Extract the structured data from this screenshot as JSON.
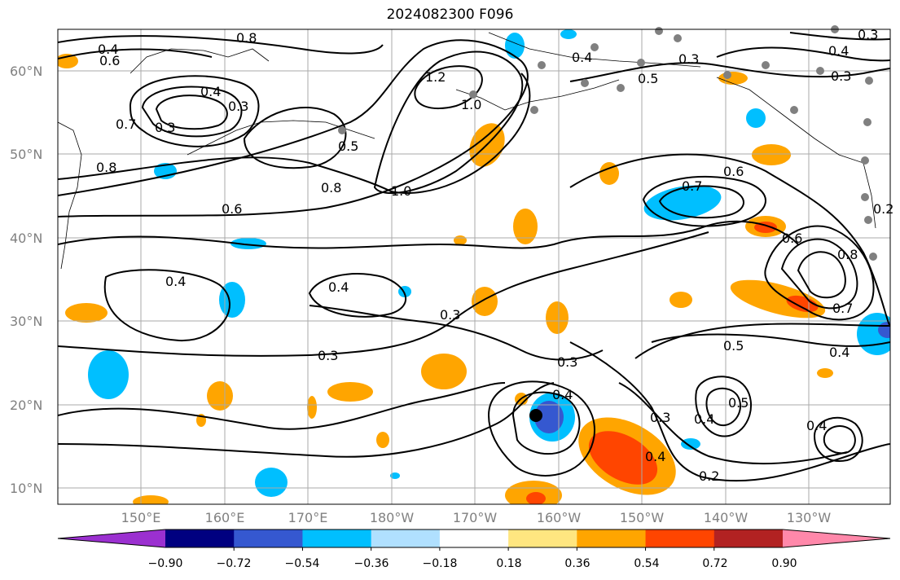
{
  "title": "2024082300 F096",
  "lat_labels": [
    "60°N",
    "50°N",
    "40°N",
    "30°N",
    "20°N",
    "10°N"
  ],
  "lon_labels": [
    "150°E",
    "160°E",
    "170°E",
    "180°W",
    "170°W",
    "160°W",
    "150°W",
    "140°W",
    "130°W"
  ],
  "colorbar": {
    "ticks": [
      "−0.90",
      "−0.72",
      "−0.54",
      "−0.36",
      "−0.18",
      "0.18",
      "0.36",
      "0.54",
      "0.72",
      "0.90"
    ],
    "colors": [
      "#9b30d0",
      "#000080",
      "#3558d0",
      "#00bfff",
      "#b0e0ff",
      "#ffffff",
      "#ffe680",
      "#ffa500",
      "#ff4500",
      "#b22222",
      "#ff88aa"
    ]
  },
  "contour_labels": [
    "0.4",
    "0.6",
    "0.8",
    "0.3",
    "0.4",
    "0.3",
    "0.7",
    "0.8",
    "0.6",
    "0.8",
    "0.5",
    "1.0",
    "1.2",
    "1.0",
    "0.4",
    "0.3",
    "0.5",
    "0.3",
    "0.4",
    "0.3",
    "0.6",
    "0.7",
    "0.6",
    "0.8",
    "0.2",
    "0.4",
    "0.4",
    "0.3",
    "0.3",
    "0.3",
    "0.7",
    "0.5",
    "0.4",
    "0.4",
    "0.5",
    "0.4",
    "0.3",
    "0.4",
    "0.2",
    "0.4"
  ]
}
